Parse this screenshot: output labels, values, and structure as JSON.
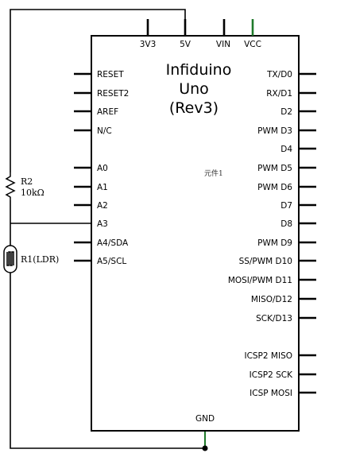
{
  "board": {
    "title_line1": "Infiduino",
    "title_line2": "Uno",
    "title_line3": "(Rev3)",
    "part_ref": "元件1"
  },
  "top_pins": [
    "3V3",
    "5V",
    "VIN",
    "VCC"
  ],
  "left_pins": [
    "RESET",
    "RESET2",
    "AREF",
    "N/C",
    "A0",
    "A1",
    "A2",
    "A3",
    "A4/SDA",
    "A5/SCL"
  ],
  "right_pins": [
    "TX/D0",
    "RX/D1",
    "D2",
    "PWM D3",
    "D4",
    "PWM D5",
    "PWM D6",
    "D7",
    "D8",
    "PWM D9",
    "SS/PWM D10",
    "MOSI/PWM D11",
    "MISO/D12",
    "SCK/D13",
    "ICSP2 MISO",
    "ICSP2 SCK",
    "ICSP MOSI"
  ],
  "bottom_pin": "GND",
  "r2": {
    "name": "R2",
    "value": "10kΩ"
  },
  "r1": {
    "label": "R1(LDR)"
  },
  "colors": {
    "wire": "#000000",
    "power_wire": "#1f7a2a"
  }
}
